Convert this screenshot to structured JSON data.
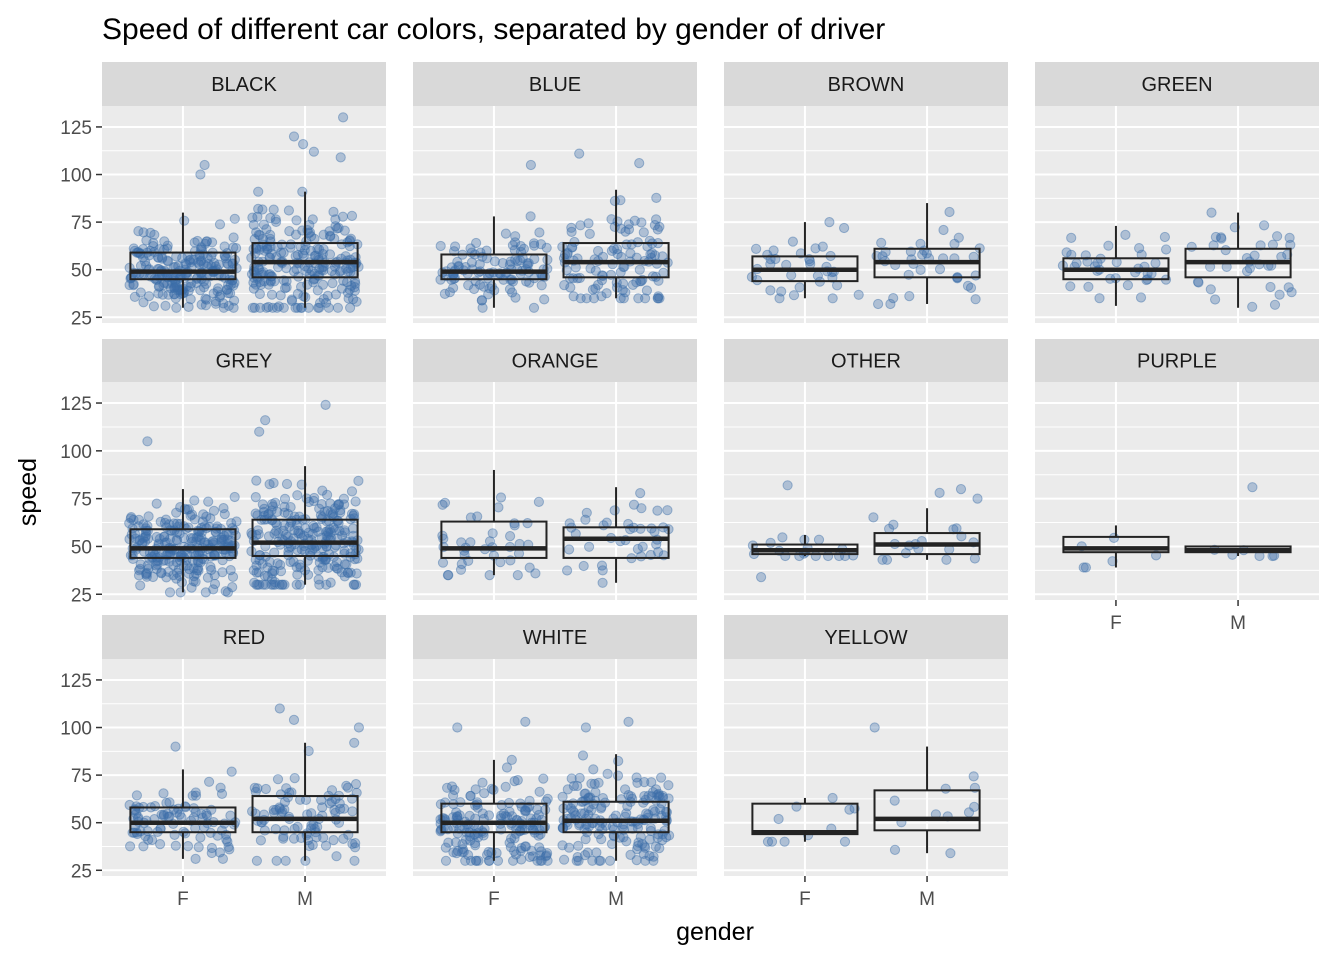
{
  "chart_data": {
    "type": "box",
    "title": "Speed of different car colors, separated by gender of driver",
    "xlabel": "gender",
    "ylabel": "speed",
    "ylim": [
      22,
      136
    ],
    "yticks": [
      "25",
      "50",
      "75",
      "100",
      "125"
    ],
    "categories": [
      "F",
      "M"
    ],
    "facet_layout": {
      "columns": 4,
      "rows": 3
    },
    "grid": true,
    "colors": {
      "points": "#3c6ea8",
      "box_line": "#232323",
      "panel_bg": "#ebebeb",
      "strip_bg": "#d9d9d9",
      "grid": "#ffffff"
    },
    "panels": [
      {
        "name": "BLACK",
        "point_density": 2.5,
        "boxes": [
          {
            "x": "F",
            "whisker_low": 30,
            "q1": 45,
            "median": 49,
            "q3": 59,
            "whisker_high": 80
          },
          {
            "x": "M",
            "whisker_low": 30,
            "q1": 46,
            "median": 54,
            "q3": 64,
            "whisker_high": 91
          }
        ],
        "outliers": [
          {
            "x": "F",
            "y": 105
          },
          {
            "x": "F",
            "y": 100
          },
          {
            "x": "M",
            "y": 130
          },
          {
            "x": "M",
            "y": 120
          },
          {
            "x": "M",
            "y": 116
          },
          {
            "x": "M",
            "y": 112
          },
          {
            "x": "M",
            "y": 109
          }
        ]
      },
      {
        "name": "BLUE",
        "point_density": 1.2,
        "boxes": [
          {
            "x": "F",
            "whisker_low": 30,
            "q1": 45,
            "median": 49,
            "q3": 58,
            "whisker_high": 78
          },
          {
            "x": "M",
            "whisker_low": 35,
            "q1": 46,
            "median": 54,
            "q3": 64,
            "whisker_high": 92
          }
        ],
        "outliers": [
          {
            "x": "F",
            "y": 105
          },
          {
            "x": "M",
            "y": 111
          },
          {
            "x": "M",
            "y": 106
          }
        ]
      },
      {
        "name": "BROWN",
        "point_density": 0.35,
        "boxes": [
          {
            "x": "F",
            "whisker_low": 35,
            "q1": 44,
            "median": 50,
            "q3": 57,
            "whisker_high": 75
          },
          {
            "x": "M",
            "whisker_low": 32,
            "q1": 46,
            "median": 54,
            "q3": 61,
            "whisker_high": 85
          }
        ],
        "outliers": []
      },
      {
        "name": "GREEN",
        "point_density": 0.35,
        "boxes": [
          {
            "x": "F",
            "whisker_low": 31,
            "q1": 45,
            "median": 50,
            "q3": 56,
            "whisker_high": 73
          },
          {
            "x": "M",
            "whisker_low": 30,
            "q1": 46,
            "median": 54,
            "q3": 61,
            "whisker_high": 80
          }
        ],
        "outliers": []
      },
      {
        "name": "GREY",
        "point_density": 2.8,
        "boxes": [
          {
            "x": "F",
            "whisker_low": 26,
            "q1": 44,
            "median": 49,
            "q3": 59,
            "whisker_high": 80
          },
          {
            "x": "M",
            "whisker_low": 30,
            "q1": 45,
            "median": 52,
            "q3": 64,
            "whisker_high": 92
          }
        ],
        "outliers": [
          {
            "x": "F",
            "y": 105
          },
          {
            "x": "M",
            "y": 124
          },
          {
            "x": "M",
            "y": 116
          },
          {
            "x": "M",
            "y": 110
          }
        ]
      },
      {
        "name": "ORANGE",
        "point_density": 0.4,
        "boxes": [
          {
            "x": "F",
            "whisker_low": 35,
            "q1": 44,
            "median": 49,
            "q3": 63,
            "whisker_high": 90
          },
          {
            "x": "M",
            "whisker_low": 31,
            "q1": 44,
            "median": 54,
            "q3": 60,
            "whisker_high": 81
          }
        ],
        "outliers": []
      },
      {
        "name": "OTHER",
        "point_density": 0.15,
        "boxes": [
          {
            "x": "F",
            "whisker_low": 45,
            "q1": 46,
            "median": 48,
            "q3": 51,
            "whisker_high": 56
          },
          {
            "x": "M",
            "whisker_low": 43,
            "q1": 46,
            "median": 51,
            "q3": 57,
            "whisker_high": 70
          }
        ],
        "outliers": [
          {
            "x": "F",
            "y": 82
          },
          {
            "x": "F",
            "y": 34
          },
          {
            "x": "M",
            "y": 80
          },
          {
            "x": "M",
            "y": 78
          },
          {
            "x": "M",
            "y": 75
          }
        ]
      },
      {
        "name": "PURPLE",
        "point_density": 0.02,
        "boxes": [
          {
            "x": "F",
            "whisker_low": 39,
            "q1": 47,
            "median": 49,
            "q3": 55,
            "whisker_high": 61
          },
          {
            "x": "M",
            "whisker_low": 45,
            "q1": 47,
            "median": 48,
            "q3": 50,
            "whisker_high": 50
          }
        ],
        "outliers": [
          {
            "x": "M",
            "y": 81
          }
        ]
      },
      {
        "name": "RED",
        "point_density": 1.0,
        "boxes": [
          {
            "x": "F",
            "whisker_low": 31,
            "q1": 45,
            "median": 50,
            "q3": 58,
            "whisker_high": 78
          },
          {
            "x": "M",
            "whisker_low": 30,
            "q1": 45,
            "median": 52,
            "q3": 64,
            "whisker_high": 92
          }
        ],
        "outliers": [
          {
            "x": "F",
            "y": 90
          },
          {
            "x": "M",
            "y": 110
          },
          {
            "x": "M",
            "y": 104
          },
          {
            "x": "M",
            "y": 100
          }
        ]
      },
      {
        "name": "WHITE",
        "point_density": 1.9,
        "boxes": [
          {
            "x": "F",
            "whisker_low": 30,
            "q1": 45,
            "median": 50,
            "q3": 60,
            "whisker_high": 83
          },
          {
            "x": "M",
            "whisker_low": 30,
            "q1": 45,
            "median": 51,
            "q3": 61,
            "whisker_high": 86
          }
        ],
        "outliers": [
          {
            "x": "F",
            "y": 103
          },
          {
            "x": "F",
            "y": 100
          },
          {
            "x": "M",
            "y": 103
          },
          {
            "x": "M",
            "y": 100
          }
        ]
      },
      {
        "name": "YELLOW",
        "point_density": 0.08,
        "boxes": [
          {
            "x": "F",
            "whisker_low": 40,
            "q1": 44,
            "median": 45,
            "q3": 60,
            "whisker_high": 63
          },
          {
            "x": "M",
            "whisker_low": 34,
            "q1": 46,
            "median": 52,
            "q3": 67,
            "whisker_high": 90
          }
        ],
        "outliers": [
          {
            "x": "M",
            "y": 100
          }
        ]
      }
    ]
  }
}
